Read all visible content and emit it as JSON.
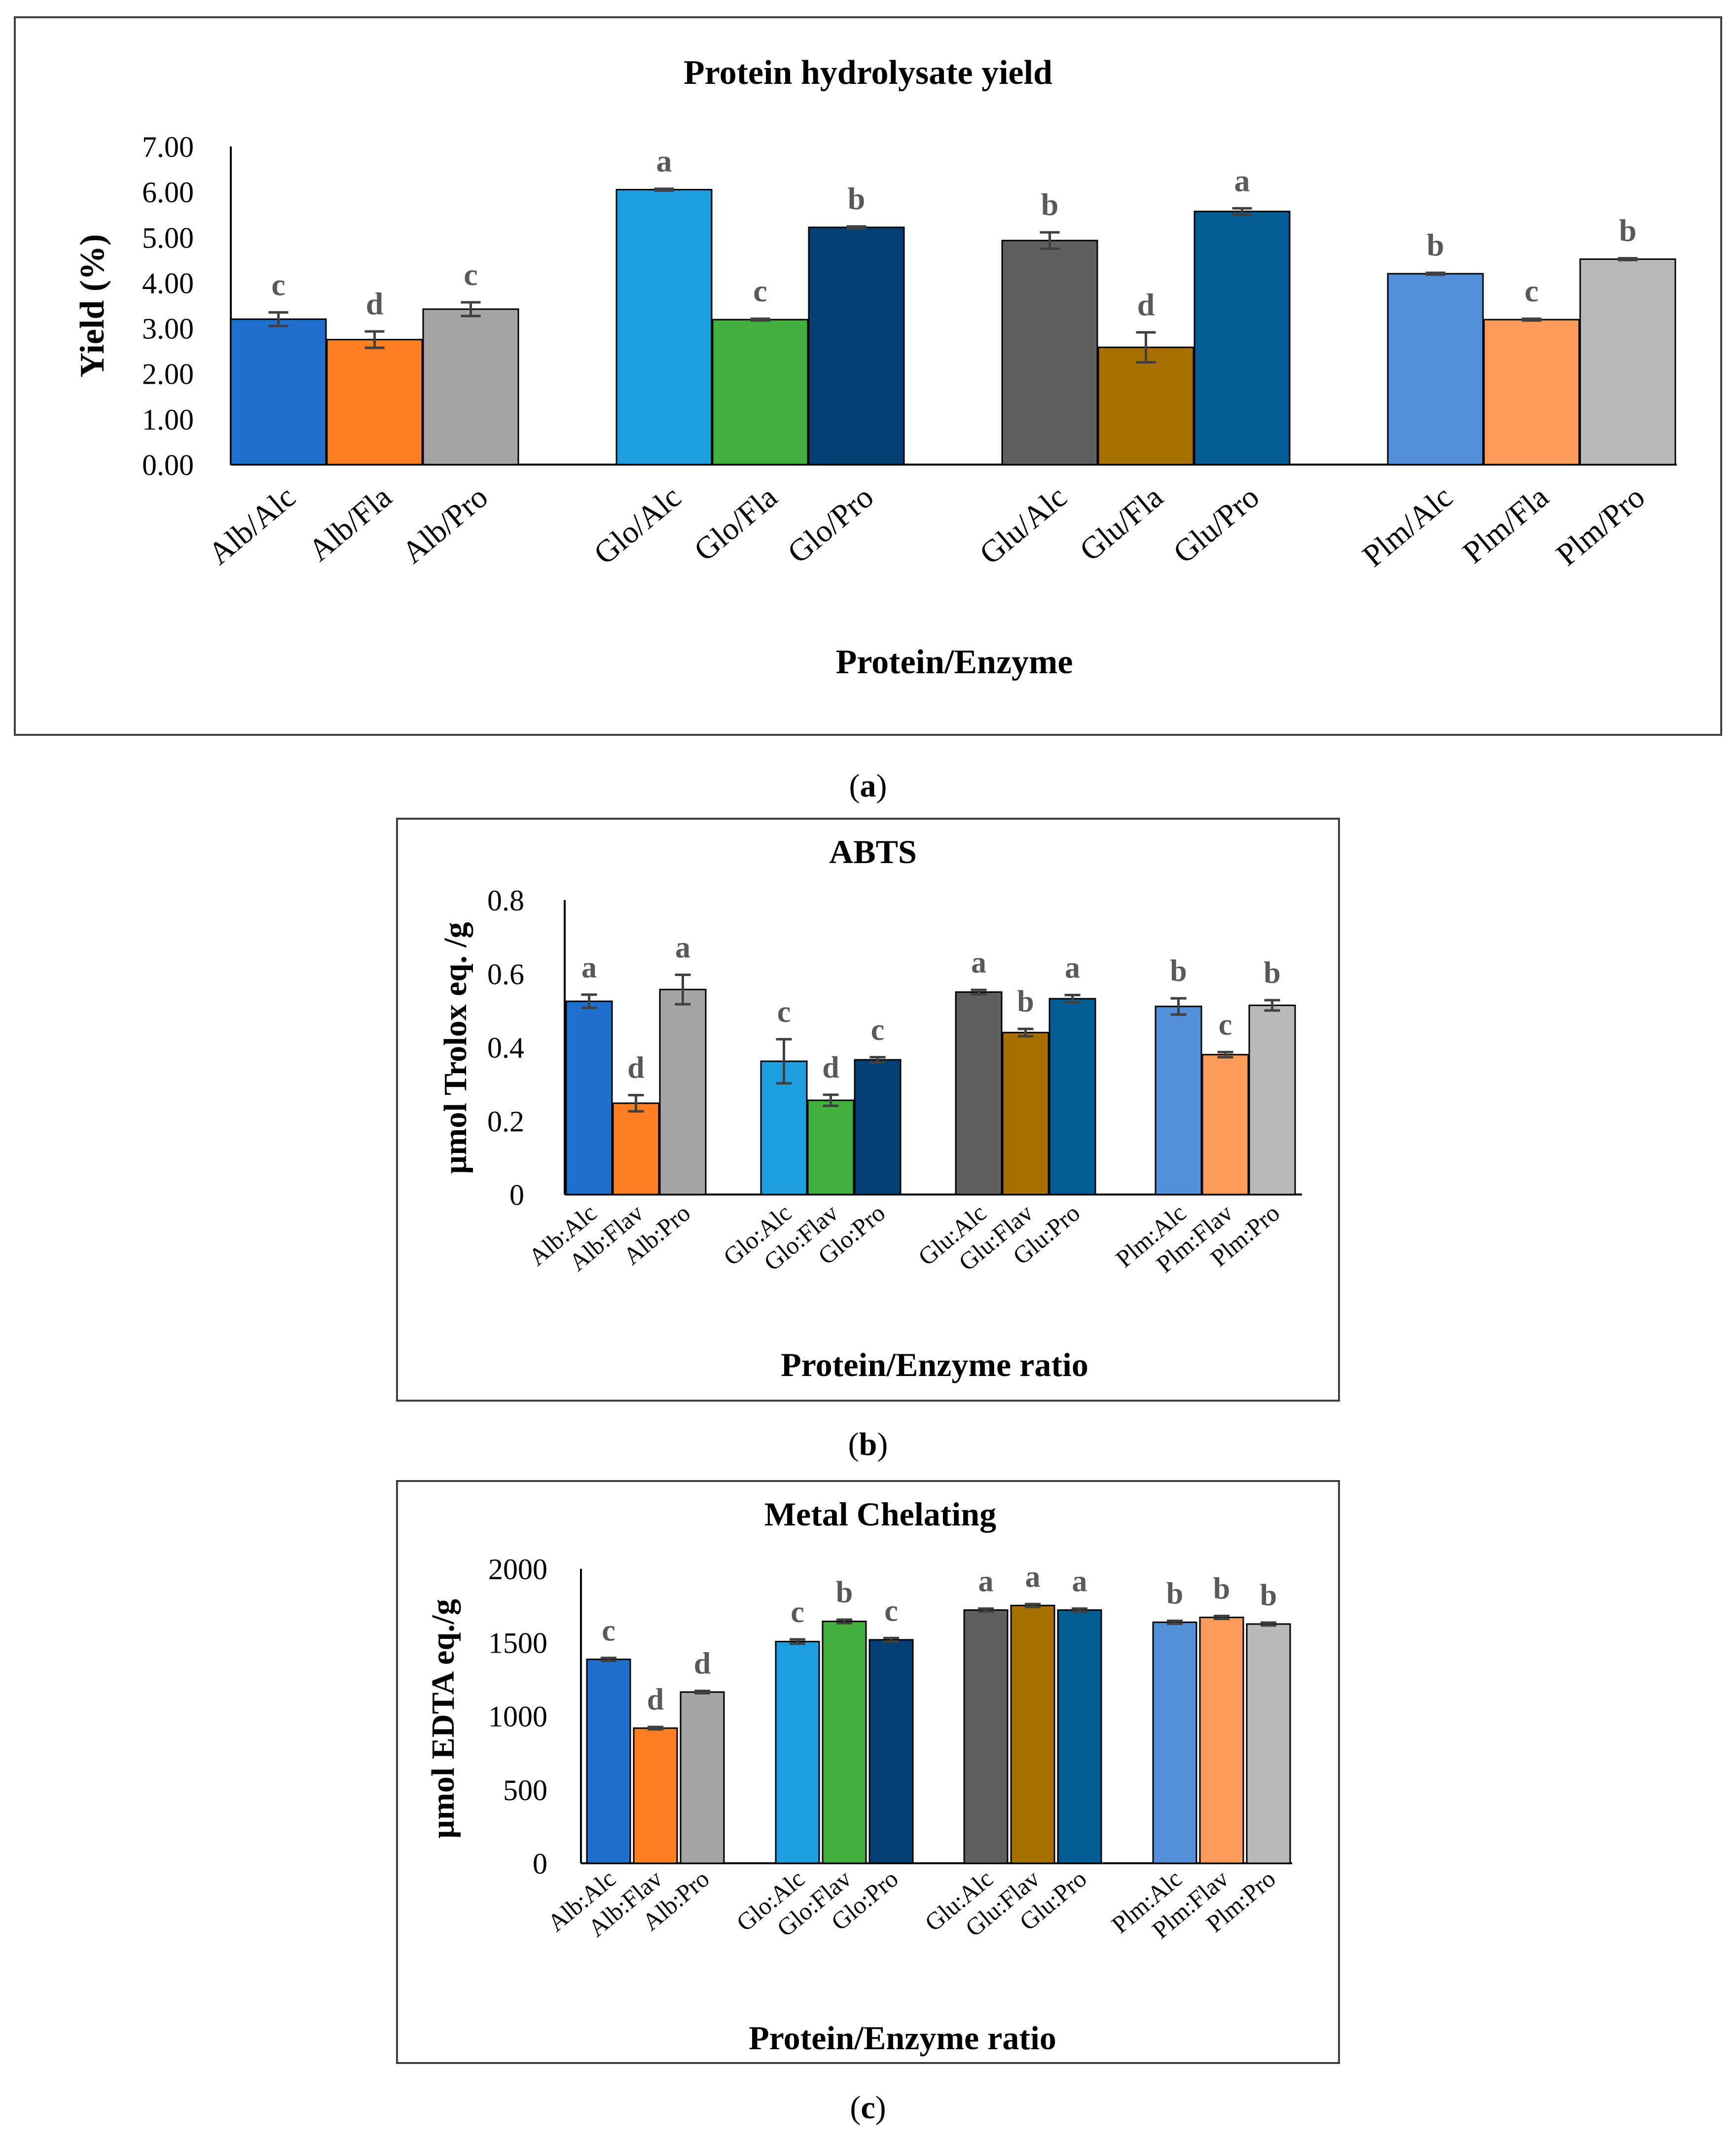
{
  "panels": [
    {
      "id": "a",
      "caption_letter": "a"
    },
    {
      "id": "b",
      "caption_letter": "b"
    },
    {
      "id": "c",
      "caption_letter": "c"
    }
  ],
  "chart_data": [
    {
      "id": "a",
      "type": "bar",
      "title": "Protein hydrolysate yield",
      "xlabel": "Protein/Enzyme",
      "ylabel": "Yield (%)",
      "ylim": [
        0,
        7
      ],
      "yticks": [
        "0.00",
        "1.00",
        "2.00",
        "3.00",
        "4.00",
        "5.00",
        "6.00",
        "7.00"
      ],
      "groups": [
        "Alb",
        "Glo",
        "Glu",
        "Plm"
      ],
      "categories": [
        "Alb/Alc",
        "Alb/Fla",
        "Alb/Pro",
        "Glo/Alc",
        "Glo/Fla",
        "Glo/Pro",
        "Glu/Alc",
        "Glu/Fla",
        "Glu/Pro",
        "Plm/Alc",
        "Plm/Fla",
        "Plm/Pro"
      ],
      "values": [
        3.2,
        2.75,
        3.42,
        6.05,
        3.19,
        5.22,
        4.93,
        2.58,
        5.57,
        4.2,
        3.19,
        4.52
      ],
      "errors": [
        0.15,
        0.18,
        0.15,
        0.02,
        0.02,
        0.02,
        0.18,
        0.33,
        0.07,
        0.02,
        0.02,
        0.02
      ],
      "letters": [
        "c",
        "d",
        "c",
        "a",
        "c",
        "b",
        "b",
        "d",
        "a",
        "b",
        "c",
        "b"
      ],
      "colors": [
        "#1f6fcc",
        "#fd7f22",
        "#a5a5a5",
        "#1e9de0",
        "#41b03d",
        "#033f73",
        "#5f5f5f",
        "#a87000",
        "#025d95",
        "#5390d9",
        "#fd9b59",
        "#b9b9b9"
      ],
      "grid": false
    },
    {
      "id": "b",
      "type": "bar",
      "title": "ABTS",
      "xlabel": "Protein/Enzyme ratio",
      "ylabel": "µmol Trolox eq. /g",
      "ylim": [
        0,
        0.8
      ],
      "yticks": [
        "0",
        "0.2",
        "0.4",
        "0.6",
        "0.8"
      ],
      "groups": [
        "Alb",
        "Glo",
        "Glu",
        "Plm"
      ],
      "categories": [
        "Alb:Alc",
        "Alb:Flav",
        "Alb:Pro",
        "Glo:Alc",
        "Glo:Flav",
        "Glo:Pro",
        "Glu:Alc",
        "Glu:Flav",
        "Glu:Pro",
        "Plm:Alc",
        "Plm:Flav",
        "Plm:Pro"
      ],
      "values": [
        0.525,
        0.248,
        0.557,
        0.362,
        0.256,
        0.366,
        0.55,
        0.44,
        0.532,
        0.511,
        0.38,
        0.514
      ],
      "errors": [
        0.018,
        0.022,
        0.04,
        0.06,
        0.015,
        0.007,
        0.006,
        0.01,
        0.01,
        0.022,
        0.007,
        0.014
      ],
      "letters": [
        "a",
        "d",
        "a",
        "c",
        "d",
        "c",
        "a",
        "b",
        "a",
        "b",
        "c",
        "b"
      ],
      "colors": [
        "#1f6fcc",
        "#fd7f22",
        "#a5a5a5",
        "#1e9de0",
        "#41b03d",
        "#033f73",
        "#5f5f5f",
        "#a87000",
        "#025d95",
        "#5390d9",
        "#fd9b59",
        "#b9b9b9"
      ],
      "grid": false
    },
    {
      "id": "c",
      "type": "bar",
      "title": "Metal Chelating",
      "xlabel": "Protein/Enzyme ratio",
      "ylabel": "µmol EDTA eq./g",
      "ylim": [
        0,
        2000
      ],
      "yticks": [
        "0",
        "500",
        "1000",
        "1500",
        "2000"
      ],
      "groups": [
        "Alb",
        "Glo",
        "Glu",
        "Plm"
      ],
      "categories": [
        "Alb:Alc",
        "Alb:Flav",
        "Alb:Pro",
        "Glo:Alc",
        "Glo:Flav",
        "Glo:Pro",
        "Glu:Alc",
        "Glu:Flav",
        "Glu:Pro",
        "Plm:Alc",
        "Plm:Flav",
        "Plm:Pro"
      ],
      "values": [
        1385,
        918,
        1163,
        1506,
        1643,
        1518,
        1720,
        1751,
        1720,
        1637,
        1670,
        1625
      ],
      "errors": [
        10,
        8,
        8,
        15,
        12,
        12,
        10,
        10,
        10,
        10,
        10,
        10
      ],
      "letters": [
        "c",
        "d",
        "d",
        "c",
        "b",
        "c",
        "a",
        "a",
        "a",
        "b",
        "b",
        "b"
      ],
      "colors": [
        "#1f6fcc",
        "#fd7f22",
        "#a5a5a5",
        "#1e9de0",
        "#41b03d",
        "#033f73",
        "#5f5f5f",
        "#a87000",
        "#025d95",
        "#5390d9",
        "#fd9b59",
        "#b9b9b9"
      ],
      "grid": false
    }
  ]
}
